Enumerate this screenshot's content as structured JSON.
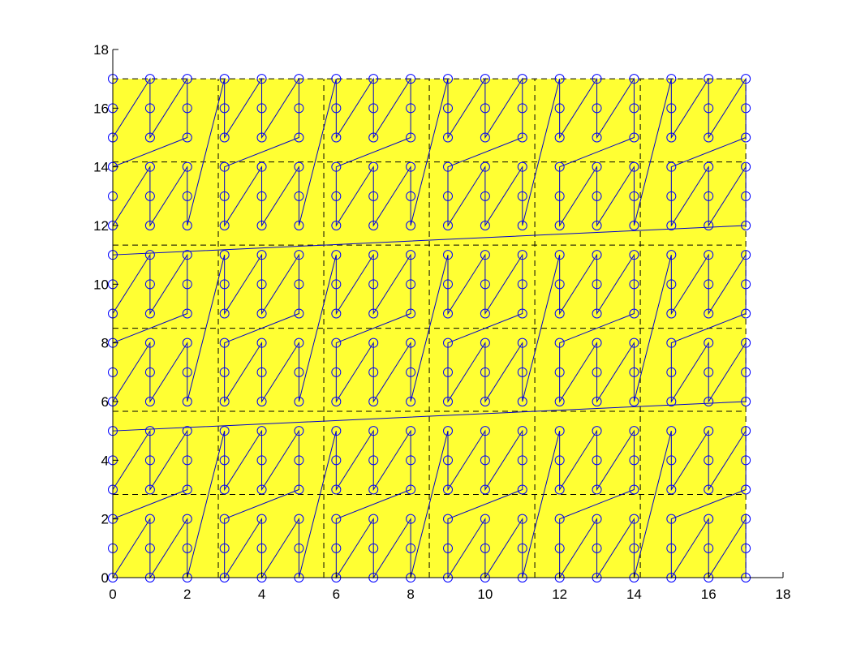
{
  "chart_data": {
    "type": "scatter",
    "title": "",
    "xlabel": "",
    "ylabel": "",
    "xlim": [
      0,
      18
    ],
    "ylim": [
      0,
      18
    ],
    "xticks": [
      0,
      2,
      4,
      6,
      8,
      10,
      12,
      14,
      16,
      18
    ],
    "yticks": [
      0,
      2,
      4,
      6,
      8,
      10,
      12,
      14,
      16,
      18
    ],
    "xtick_labels": [
      "0",
      "2",
      "4",
      "6",
      "8",
      "10",
      "12",
      "14",
      "16",
      "18"
    ],
    "ytick_labels": [
      "0",
      "2",
      "4",
      "6",
      "8",
      "10",
      "12",
      "14",
      "16",
      "18"
    ],
    "grid": false,
    "background_region": {
      "x": [
        0,
        17
      ],
      "y": [
        0,
        17
      ]
    },
    "subgrid_lines": {
      "x": [
        2.8333,
        5.6667,
        8.5,
        11.3333,
        14.1667
      ],
      "y": [
        2.8333,
        5.6667,
        8.5,
        11.3333,
        14.1667
      ],
      "style": "dashed"
    },
    "grid_points": {
      "x_count": 18,
      "y_count": 18,
      "x_start": 0,
      "y_start": 0,
      "step": 1
    },
    "traversal": {
      "description": "Points connected in column-major order within 3x3 blocks; blocks ordered column-first inside 2x2 super-blocks",
      "block_size": 3,
      "super_block_size": 2
    },
    "colors": {
      "background": "#ffff33",
      "marker": "#0000ff",
      "line": "#0000cc",
      "dashed": "#000000",
      "axis": "#000000"
    }
  }
}
